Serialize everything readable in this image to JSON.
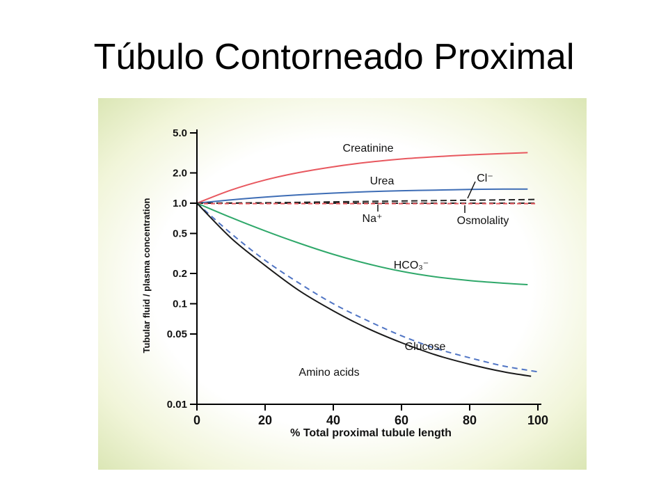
{
  "slide": {
    "title": "Túbulo Contorneado Proximal"
  },
  "colors": {
    "creatinine": "#e8585f",
    "urea": "#3e6db5",
    "chloride": "#222222",
    "sodium": "#222222",
    "osmolality": "#e8585f",
    "bicarbonate": "#2fa86a",
    "glucose": "#4f74c4",
    "amino_acids": "#1a1a1a",
    "axis": "#000000"
  },
  "chart_data": {
    "type": "line",
    "title": "",
    "xlabel": "% Total proximal tubule length",
    "ylabel": "Tubular fluid / plasma concentration",
    "xlim": [
      0,
      100
    ],
    "ylim": [
      0.01,
      5.0
    ],
    "yscale": "log",
    "x_ticks": [
      "0",
      "20",
      "40",
      "60",
      "80",
      "100"
    ],
    "y_ticks": [
      "5.0",
      "2.0",
      "1.0",
      "0.5",
      "0.2",
      "0.1",
      "0.05",
      "0.01"
    ],
    "y_tick_values": [
      5.0,
      2.0,
      1.0,
      0.5,
      0.2,
      0.1,
      0.05,
      0.01
    ],
    "grid": false,
    "legend": "inline labels",
    "series": [
      {
        "name": "Creatinine",
        "color_key": "creatinine",
        "dash": "solid",
        "x": [
          0,
          10,
          20,
          30,
          40,
          50,
          60,
          70,
          80,
          90,
          97
        ],
        "values": [
          1.0,
          1.35,
          1.7,
          2.02,
          2.3,
          2.55,
          2.75,
          2.9,
          3.02,
          3.12,
          3.18
        ]
      },
      {
        "name": "Urea",
        "color_key": "urea",
        "dash": "solid",
        "x": [
          0,
          10,
          20,
          30,
          40,
          50,
          60,
          70,
          80,
          90,
          97
        ],
        "values": [
          1.0,
          1.08,
          1.15,
          1.21,
          1.26,
          1.3,
          1.33,
          1.35,
          1.37,
          1.38,
          1.38
        ]
      },
      {
        "name": "Cl⁻",
        "color_key": "chloride",
        "dash": "long",
        "x": [
          0,
          20,
          40,
          60,
          80,
          100
        ],
        "values": [
          1.0,
          1.01,
          1.03,
          1.05,
          1.07,
          1.09
        ]
      },
      {
        "name": "Na⁺",
        "color_key": "sodium",
        "dash": "long",
        "x": [
          0,
          20,
          40,
          60,
          80,
          100
        ],
        "values": [
          1.0,
          1.0,
          1.0,
          1.0,
          1.0,
          1.0
        ]
      },
      {
        "name": "Osmolality",
        "color_key": "osmolality",
        "dash": "short",
        "x": [
          0,
          20,
          40,
          60,
          80,
          100
        ],
        "values": [
          0.99,
          0.99,
          0.99,
          0.99,
          0.99,
          0.99
        ]
      },
      {
        "name": "HCO₃⁻",
        "color_key": "bicarbonate",
        "dash": "solid",
        "x": [
          0,
          10,
          20,
          30,
          40,
          50,
          60,
          70,
          80,
          90,
          97
        ],
        "values": [
          1.0,
          0.72,
          0.53,
          0.4,
          0.31,
          0.25,
          0.21,
          0.185,
          0.17,
          0.16,
          0.155
        ]
      },
      {
        "name": "Glucose",
        "color_key": "glucose",
        "dash": "medium",
        "x": [
          0,
          10,
          20,
          30,
          40,
          50,
          60,
          70,
          80,
          90,
          100
        ],
        "values": [
          1.0,
          0.5,
          0.27,
          0.16,
          0.1,
          0.068,
          0.048,
          0.036,
          0.029,
          0.024,
          0.021
        ]
      },
      {
        "name": "Amino acids",
        "color_key": "amino_acids",
        "dash": "solid",
        "x": [
          0,
          10,
          20,
          30,
          40,
          50,
          60,
          70,
          80,
          90,
          98
        ],
        "values": [
          1.0,
          0.45,
          0.24,
          0.135,
          0.085,
          0.057,
          0.041,
          0.031,
          0.025,
          0.021,
          0.019
        ]
      }
    ]
  }
}
